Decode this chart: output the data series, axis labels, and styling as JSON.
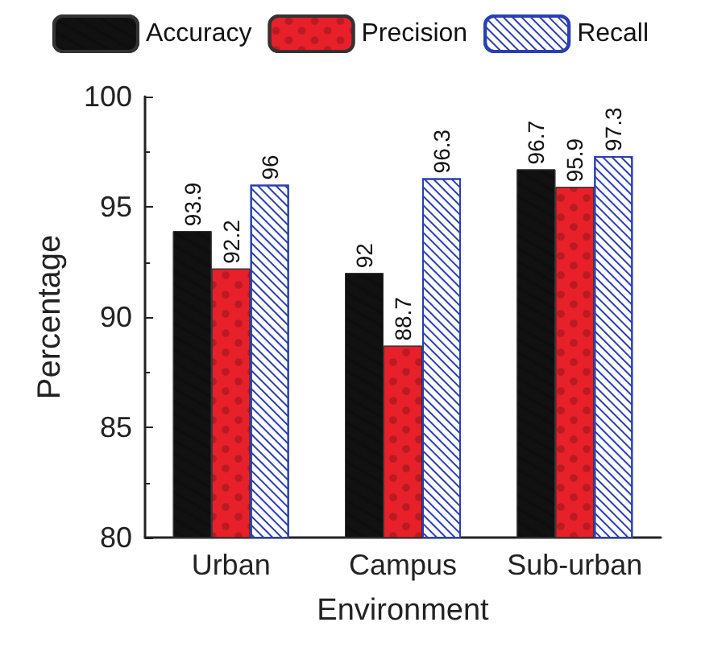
{
  "chart_data": {
    "type": "bar",
    "xlabel": "Environment",
    "ylabel": "Percentage",
    "categories": [
      "Urban",
      "Campus",
      "Sub-urban"
    ],
    "series": [
      {
        "name": "Accuracy",
        "color": "#111111",
        "values": [
          93.9,
          92,
          96.7
        ]
      },
      {
        "name": "Precision",
        "color": "#e8202a",
        "values": [
          92.2,
          88.7,
          95.9
        ]
      },
      {
        "name": "Recall",
        "color": "#2a3fb0",
        "values": [
          96,
          96.3,
          97.3
        ]
      }
    ],
    "ylim": [
      80,
      100
    ],
    "yticks": [
      80,
      85,
      90,
      95,
      100
    ],
    "grid": false,
    "legend": "top",
    "data_labels": true
  }
}
